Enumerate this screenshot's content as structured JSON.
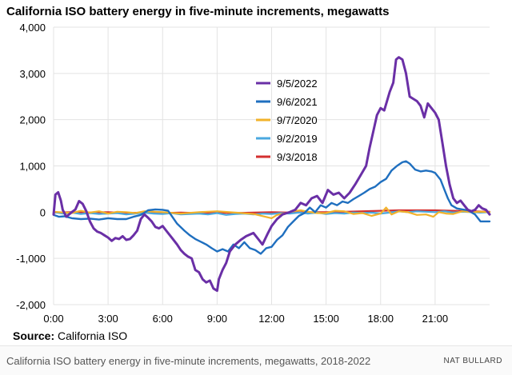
{
  "title": "California ISO battery energy in five-minute increments, megawatts",
  "source_label": "Source:",
  "source_value": "California ISO",
  "footer": {
    "caption": "California ISO battery energy in five-minute increments, megawatts, 2018-2022",
    "credit": "NAT BULLARD"
  },
  "chart_data": {
    "type": "line",
    "title": "California ISO battery energy in five-minute increments, megawatts",
    "xlabel": "",
    "ylabel": "",
    "xlim": [
      0,
      24
    ],
    "ylim": [
      -2000,
      4000
    ],
    "x_ticks": [
      0,
      3,
      6,
      9,
      12,
      15,
      18,
      21
    ],
    "x_tick_labels": [
      "0:00",
      "3:00",
      "6:00",
      "9:00",
      "12:00",
      "15:00",
      "18:00",
      "21:00"
    ],
    "y_ticks": [
      -2000,
      -1000,
      0,
      1000,
      2000,
      3000,
      4000
    ],
    "y_tick_labels": [
      "-2,000",
      "-1,000",
      "0",
      "1,000",
      "2,000",
      "3,000",
      "4,000"
    ],
    "grid": true,
    "legend_position": "center",
    "series": [
      {
        "name": "9/5/2022",
        "color": "#6a2fa6",
        "width": 3,
        "points": [
          [
            0,
            -50
          ],
          [
            0.1,
            380
          ],
          [
            0.25,
            430
          ],
          [
            0.4,
            250
          ],
          [
            0.5,
            50
          ],
          [
            0.7,
            -100
          ],
          [
            1,
            0
          ],
          [
            1.2,
            60
          ],
          [
            1.4,
            240
          ],
          [
            1.6,
            180
          ],
          [
            1.8,
            20
          ],
          [
            2,
            -200
          ],
          [
            2.2,
            -350
          ],
          [
            2.4,
            -420
          ],
          [
            2.6,
            -450
          ],
          [
            2.8,
            -500
          ],
          [
            3,
            -550
          ],
          [
            3.2,
            -620
          ],
          [
            3.4,
            -560
          ],
          [
            3.6,
            -580
          ],
          [
            3.8,
            -520
          ],
          [
            4,
            -600
          ],
          [
            4.2,
            -580
          ],
          [
            4.4,
            -500
          ],
          [
            4.6,
            -400
          ],
          [
            4.8,
            -150
          ],
          [
            5,
            -50
          ],
          [
            5.2,
            -120
          ],
          [
            5.4,
            -200
          ],
          [
            5.6,
            -320
          ],
          [
            5.8,
            -350
          ],
          [
            6,
            -300
          ],
          [
            6.2,
            -400
          ],
          [
            6.5,
            -550
          ],
          [
            6.8,
            -700
          ],
          [
            7,
            -820
          ],
          [
            7.2,
            -900
          ],
          [
            7.4,
            -960
          ],
          [
            7.6,
            -1000
          ],
          [
            7.8,
            -1250
          ],
          [
            8,
            -1300
          ],
          [
            8.2,
            -1450
          ],
          [
            8.4,
            -1520
          ],
          [
            8.6,
            -1480
          ],
          [
            8.8,
            -1650
          ],
          [
            9,
            -1700
          ],
          [
            9.1,
            -1450
          ],
          [
            9.3,
            -1250
          ],
          [
            9.5,
            -1100
          ],
          [
            9.7,
            -850
          ],
          [
            10,
            -700
          ],
          [
            10.3,
            -600
          ],
          [
            10.6,
            -520
          ],
          [
            11,
            -450
          ],
          [
            11.3,
            -600
          ],
          [
            11.5,
            -700
          ],
          [
            11.8,
            -450
          ],
          [
            12,
            -300
          ],
          [
            12.3,
            -150
          ],
          [
            12.6,
            -50
          ],
          [
            13,
            0
          ],
          [
            13.3,
            50
          ],
          [
            13.6,
            200
          ],
          [
            13.9,
            150
          ],
          [
            14.2,
            300
          ],
          [
            14.5,
            350
          ],
          [
            14.8,
            200
          ],
          [
            15.1,
            480
          ],
          [
            15.4,
            380
          ],
          [
            15.7,
            420
          ],
          [
            16,
            300
          ],
          [
            16.3,
            420
          ],
          [
            16.6,
            600
          ],
          [
            16.9,
            800
          ],
          [
            17.2,
            1000
          ],
          [
            17.4,
            1400
          ],
          [
            17.6,
            1750
          ],
          [
            17.8,
            2100
          ],
          [
            18,
            2250
          ],
          [
            18.2,
            2200
          ],
          [
            18.5,
            2600
          ],
          [
            18.7,
            2800
          ],
          [
            18.85,
            3300
          ],
          [
            19.0,
            3350
          ],
          [
            19.2,
            3300
          ],
          [
            19.4,
            3000
          ],
          [
            19.6,
            2500
          ],
          [
            19.8,
            2450
          ],
          [
            20,
            2400
          ],
          [
            20.2,
            2300
          ],
          [
            20.4,
            2050
          ],
          [
            20.6,
            2350
          ],
          [
            20.8,
            2250
          ],
          [
            21,
            2150
          ],
          [
            21.2,
            2000
          ],
          [
            21.4,
            1500
          ],
          [
            21.6,
            1000
          ],
          [
            21.8,
            600
          ],
          [
            22,
            300
          ],
          [
            22.2,
            200
          ],
          [
            22.4,
            250
          ],
          [
            22.6,
            150
          ],
          [
            22.8,
            50
          ],
          [
            23,
            20
          ],
          [
            23.2,
            50
          ],
          [
            23.4,
            150
          ],
          [
            23.6,
            80
          ],
          [
            23.8,
            50
          ],
          [
            24,
            -50
          ]
        ]
      },
      {
        "name": "9/6/2021",
        "color": "#1f6fbf",
        "width": 2.4,
        "points": [
          [
            0,
            -60
          ],
          [
            0.3,
            -100
          ],
          [
            0.6,
            -90
          ],
          [
            1,
            -130
          ],
          [
            1.5,
            -150
          ],
          [
            2,
            -140
          ],
          [
            2.5,
            -160
          ],
          [
            3,
            -130
          ],
          [
            3.5,
            -150
          ],
          [
            4,
            -150
          ],
          [
            4.4,
            -100
          ],
          [
            4.8,
            -60
          ],
          [
            5.2,
            40
          ],
          [
            5.6,
            60
          ],
          [
            6,
            50
          ],
          [
            6.3,
            30
          ],
          [
            6.5,
            -80
          ],
          [
            6.8,
            -250
          ],
          [
            7.2,
            -400
          ],
          [
            7.5,
            -500
          ],
          [
            7.8,
            -580
          ],
          [
            8.1,
            -640
          ],
          [
            8.4,
            -700
          ],
          [
            8.7,
            -780
          ],
          [
            9,
            -850
          ],
          [
            9.3,
            -800
          ],
          [
            9.6,
            -850
          ],
          [
            9.9,
            -700
          ],
          [
            10.2,
            -780
          ],
          [
            10.5,
            -650
          ],
          [
            10.8,
            -780
          ],
          [
            11.1,
            -820
          ],
          [
            11.4,
            -900
          ],
          [
            11.7,
            -780
          ],
          [
            12,
            -750
          ],
          [
            12.3,
            -600
          ],
          [
            12.6,
            -500
          ],
          [
            12.9,
            -320
          ],
          [
            13.2,
            -200
          ],
          [
            13.5,
            -80
          ],
          [
            13.8,
            -20
          ],
          [
            14.1,
            100
          ],
          [
            14.4,
            0
          ],
          [
            14.7,
            150
          ],
          [
            15,
            100
          ],
          [
            15.3,
            200
          ],
          [
            15.6,
            150
          ],
          [
            15.9,
            230
          ],
          [
            16.2,
            200
          ],
          [
            16.5,
            280
          ],
          [
            16.8,
            350
          ],
          [
            17.1,
            420
          ],
          [
            17.4,
            500
          ],
          [
            17.7,
            550
          ],
          [
            18,
            650
          ],
          [
            18.3,
            720
          ],
          [
            18.6,
            900
          ],
          [
            18.9,
            1000
          ],
          [
            19.2,
            1080
          ],
          [
            19.4,
            1100
          ],
          [
            19.6,
            1050
          ],
          [
            19.9,
            920
          ],
          [
            20.2,
            880
          ],
          [
            20.5,
            900
          ],
          [
            20.8,
            880
          ],
          [
            21,
            850
          ],
          [
            21.3,
            700
          ],
          [
            21.5,
            500
          ],
          [
            21.7,
            300
          ],
          [
            21.9,
            150
          ],
          [
            22.2,
            80
          ],
          [
            22.5,
            60
          ],
          [
            22.8,
            40
          ],
          [
            23.2,
            -50
          ],
          [
            23.5,
            -200
          ],
          [
            24,
            -200
          ]
        ]
      },
      {
        "name": "9/7/2020",
        "color": "#f2b22a",
        "width": 2.2,
        "points": [
          [
            0,
            10
          ],
          [
            1,
            -20
          ],
          [
            1.5,
            30
          ],
          [
            2,
            -10
          ],
          [
            2.5,
            20
          ],
          [
            3,
            -30
          ],
          [
            3.5,
            10
          ],
          [
            4,
            0
          ],
          [
            4.5,
            -20
          ],
          [
            5,
            20
          ],
          [
            6,
            0
          ],
          [
            7,
            -30
          ],
          [
            8,
            0
          ],
          [
            9,
            20
          ],
          [
            10,
            -10
          ],
          [
            11,
            -40
          ],
          [
            12,
            -130
          ],
          [
            12.3,
            -60
          ],
          [
            12.8,
            -20
          ],
          [
            13.2,
            20
          ],
          [
            13.6,
            40
          ],
          [
            14,
            10
          ],
          [
            14.5,
            -20
          ],
          [
            15,
            -20
          ],
          [
            15.5,
            30
          ],
          [
            16,
            20
          ],
          [
            16.5,
            -40
          ],
          [
            17,
            -20
          ],
          [
            17.5,
            -80
          ],
          [
            18,
            -30
          ],
          [
            18.3,
            100
          ],
          [
            18.6,
            -50
          ],
          [
            19,
            20
          ],
          [
            19.5,
            0
          ],
          [
            20,
            -60
          ],
          [
            20.5,
            -50
          ],
          [
            20.9,
            -100
          ],
          [
            21.2,
            0
          ],
          [
            21.6,
            -30
          ],
          [
            22,
            -40
          ],
          [
            22.5,
            20
          ],
          [
            23,
            0
          ],
          [
            23.5,
            10
          ],
          [
            24,
            0
          ]
        ]
      },
      {
        "name": "9/2/2019",
        "color": "#4aa8df",
        "width": 2.2,
        "points": [
          [
            0,
            0
          ],
          [
            0.5,
            -30
          ],
          [
            1,
            -10
          ],
          [
            1.5,
            -40
          ],
          [
            2,
            -20
          ],
          [
            2.5,
            -40
          ],
          [
            3,
            -30
          ],
          [
            3.5,
            -20
          ],
          [
            4,
            -50
          ],
          [
            4.5,
            -30
          ],
          [
            5,
            -10
          ],
          [
            5.5,
            -30
          ],
          [
            6,
            -40
          ],
          [
            6.5,
            -20
          ],
          [
            7,
            -50
          ],
          [
            7.5,
            -40
          ],
          [
            8,
            -30
          ],
          [
            8.5,
            -50
          ],
          [
            9,
            -20
          ],
          [
            9.5,
            -60
          ],
          [
            10,
            -40
          ],
          [
            10.5,
            -30
          ],
          [
            11,
            -50
          ],
          [
            11.5,
            -30
          ],
          [
            12,
            -40
          ],
          [
            12.5,
            -20
          ],
          [
            13,
            -30
          ],
          [
            13.5,
            -10
          ],
          [
            14,
            -30
          ],
          [
            14.5,
            -10
          ],
          [
            15,
            -40
          ],
          [
            15.5,
            -20
          ],
          [
            16,
            -30
          ],
          [
            16.5,
            -10
          ],
          [
            17,
            -20
          ],
          [
            17.5,
            -10
          ],
          [
            18,
            -30
          ],
          [
            18.5,
            -10
          ],
          [
            19,
            20
          ],
          [
            19.5,
            0
          ],
          [
            20,
            20
          ],
          [
            20.5,
            10
          ],
          [
            21,
            0
          ],
          [
            21.5,
            20
          ],
          [
            22,
            -10
          ],
          [
            22.5,
            10
          ],
          [
            23,
            0
          ],
          [
            23.5,
            -10
          ],
          [
            24,
            0
          ]
        ]
      },
      {
        "name": "9/3/2018",
        "color": "#d42f2f",
        "width": 2.2,
        "points": [
          [
            0,
            -10
          ],
          [
            1,
            0
          ],
          [
            2,
            -10
          ],
          [
            3,
            0
          ],
          [
            4,
            -20
          ],
          [
            5,
            -10
          ],
          [
            6,
            -20
          ],
          [
            7,
            -10
          ],
          [
            8,
            -20
          ],
          [
            9,
            -10
          ],
          [
            10,
            -20
          ],
          [
            11,
            -10
          ],
          [
            12,
            0
          ],
          [
            13,
            -10
          ],
          [
            14,
            0
          ],
          [
            15,
            0
          ],
          [
            16,
            10
          ],
          [
            17,
            20
          ],
          [
            18,
            30
          ],
          [
            19,
            40
          ],
          [
            20,
            40
          ],
          [
            21,
            40
          ],
          [
            22,
            30
          ],
          [
            23,
            20
          ],
          [
            24,
            10
          ]
        ]
      }
    ]
  }
}
